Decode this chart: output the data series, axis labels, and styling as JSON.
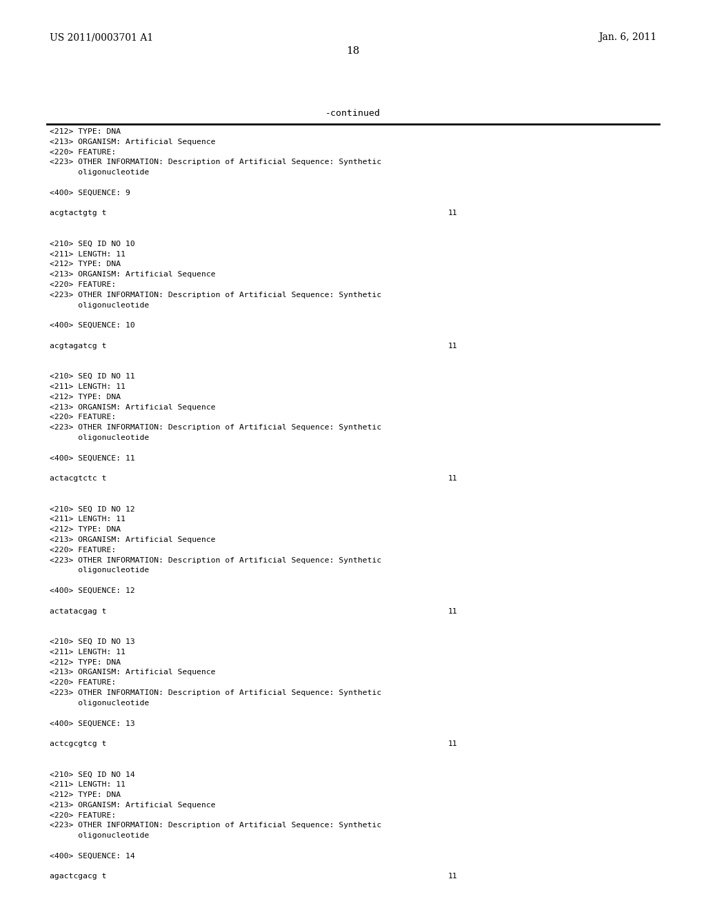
{
  "header_left": "US 2011/0003701 A1",
  "header_right": "Jan. 6, 2011",
  "page_number": "18",
  "continued_label": "-continued",
  "background_color": "#ffffff",
  "text_color": "#000000",
  "content_blocks": [
    {
      "type": "metadata",
      "lines": [
        "<212> TYPE: DNA",
        "<213> ORGANISM: Artificial Sequence",
        "<220> FEATURE:",
        "<223> OTHER INFORMATION: Description of Artificial Sequence: Synthetic",
        "      oligonucleotide"
      ]
    },
    {
      "type": "blank"
    },
    {
      "type": "sequence_label",
      "text": "<400> SEQUENCE: 9"
    },
    {
      "type": "blank"
    },
    {
      "type": "sequence_line",
      "seq": "acgtactgtg t",
      "length": "11"
    },
    {
      "type": "blank"
    },
    {
      "type": "blank"
    },
    {
      "type": "metadata",
      "lines": [
        "<210> SEQ ID NO 10",
        "<211> LENGTH: 11",
        "<212> TYPE: DNA",
        "<213> ORGANISM: Artificial Sequence",
        "<220> FEATURE:",
        "<223> OTHER INFORMATION: Description of Artificial Sequence: Synthetic",
        "      oligonucleotide"
      ]
    },
    {
      "type": "blank"
    },
    {
      "type": "sequence_label",
      "text": "<400> SEQUENCE: 10"
    },
    {
      "type": "blank"
    },
    {
      "type": "sequence_line",
      "seq": "acgtagatcg t",
      "length": "11"
    },
    {
      "type": "blank"
    },
    {
      "type": "blank"
    },
    {
      "type": "metadata",
      "lines": [
        "<210> SEQ ID NO 11",
        "<211> LENGTH: 11",
        "<212> TYPE: DNA",
        "<213> ORGANISM: Artificial Sequence",
        "<220> FEATURE:",
        "<223> OTHER INFORMATION: Description of Artificial Sequence: Synthetic",
        "      oligonucleotide"
      ]
    },
    {
      "type": "blank"
    },
    {
      "type": "sequence_label",
      "text": "<400> SEQUENCE: 11"
    },
    {
      "type": "blank"
    },
    {
      "type": "sequence_line",
      "seq": "actacgtctc t",
      "length": "11"
    },
    {
      "type": "blank"
    },
    {
      "type": "blank"
    },
    {
      "type": "metadata",
      "lines": [
        "<210> SEQ ID NO 12",
        "<211> LENGTH: 11",
        "<212> TYPE: DNA",
        "<213> ORGANISM: Artificial Sequence",
        "<220> FEATURE:",
        "<223> OTHER INFORMATION: Description of Artificial Sequence: Synthetic",
        "      oligonucleotide"
      ]
    },
    {
      "type": "blank"
    },
    {
      "type": "sequence_label",
      "text": "<400> SEQUENCE: 12"
    },
    {
      "type": "blank"
    },
    {
      "type": "sequence_line",
      "seq": "actatacgag t",
      "length": "11"
    },
    {
      "type": "blank"
    },
    {
      "type": "blank"
    },
    {
      "type": "metadata",
      "lines": [
        "<210> SEQ ID NO 13",
        "<211> LENGTH: 11",
        "<212> TYPE: DNA",
        "<213> ORGANISM: Artificial Sequence",
        "<220> FEATURE:",
        "<223> OTHER INFORMATION: Description of Artificial Sequence: Synthetic",
        "      oligonucleotide"
      ]
    },
    {
      "type": "blank"
    },
    {
      "type": "sequence_label",
      "text": "<400> SEQUENCE: 13"
    },
    {
      "type": "blank"
    },
    {
      "type": "sequence_line",
      "seq": "actcgcgtcg t",
      "length": "11"
    },
    {
      "type": "blank"
    },
    {
      "type": "blank"
    },
    {
      "type": "metadata",
      "lines": [
        "<210> SEQ ID NO 14",
        "<211> LENGTH: 11",
        "<212> TYPE: DNA",
        "<213> ORGANISM: Artificial Sequence",
        "<220> FEATURE:",
        "<223> OTHER INFORMATION: Description of Artificial Sequence: Synthetic",
        "      oligonucleotide"
      ]
    },
    {
      "type": "blank"
    },
    {
      "type": "sequence_label",
      "text": "<400> SEQUENCE: 14"
    },
    {
      "type": "blank"
    },
    {
      "type": "sequence_line",
      "seq": "agactcgacg t",
      "length": "11"
    }
  ]
}
